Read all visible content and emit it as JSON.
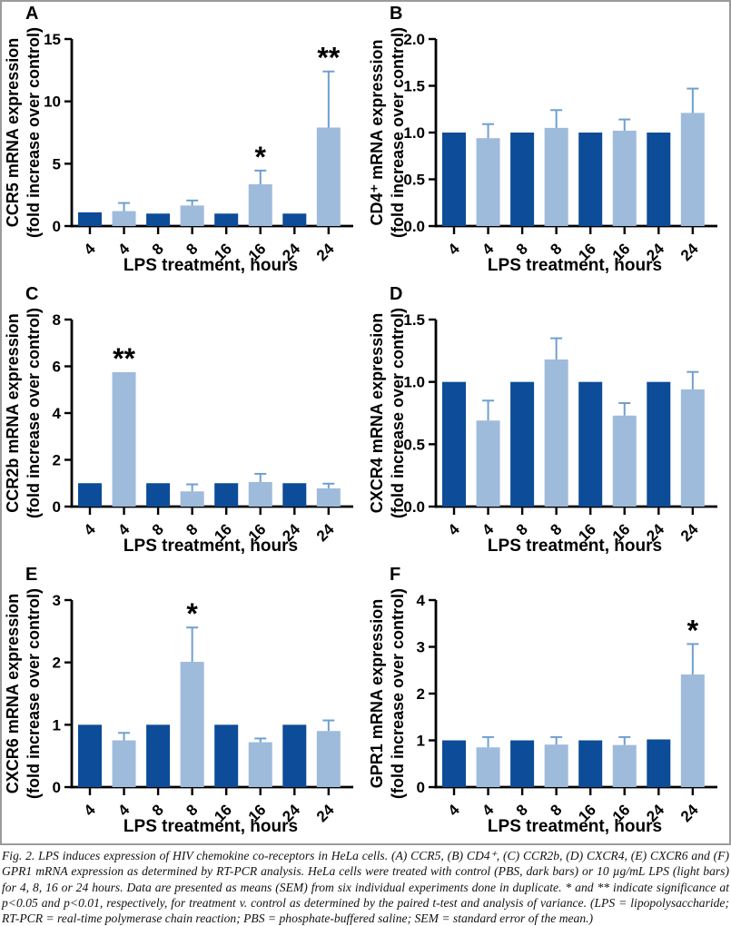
{
  "figure": {
    "caption": "Fig. 2. LPS induces expression of HIV chemokine co-receptors in HeLa cells. (A) CCR5, (B) CD4⁺, (C) CCR2b, (D) CXCR4, (E) CXCR6 and (F) GPR1 mRNA expression as determined by RT-PCR analysis. HeLa cells were treated with control (PBS, dark bars) or 10 µg/mL LPS (light bars) for 4, 8, 16 or 24 hours. Data are presented as means (SEM) from six individual experiments done in duplicate. * and ** indicate significance at p<0.05 and p<0.01, respectively, for treatment v. control as determined by the paired t-test and analysis of variance. (LPS = lipopolysaccharide; RT-PCR = real-time polymerase chain reaction; PBS = phosphate-buffered saline; SEM = standard error of the mean.)",
    "legend": {
      "dark_bars": "control (PBS)",
      "light_bars": "10 µg/mL LPS"
    }
  },
  "colors": {
    "bar_dark": "#0d4c98",
    "bar_light": "#9fbbdb",
    "error_bar": "#6f9fd0",
    "axis": "#000000",
    "text": "#000000",
    "frame_border": "#9b9b9b"
  },
  "chart_data": [
    {
      "panel": "A",
      "type": "bar",
      "ylabel_line1": "CCR5 mRNA expression",
      "ylabel_line2": "(fold increase over control)",
      "xlabel": "LPS treatment, hours",
      "categories": [
        "4",
        "4",
        "8",
        "8",
        "16",
        "16",
        "24",
        "24"
      ],
      "values": [
        1.1,
        1.2,
        1.0,
        1.65,
        1.0,
        3.35,
        1.0,
        7.9
      ],
      "errors": [
        0,
        0.65,
        0,
        0.4,
        0,
        1.1,
        0,
        4.5
      ],
      "significance": [
        "",
        "",
        "",
        "",
        "",
        "*",
        "",
        "**"
      ],
      "ylim": [
        0,
        15
      ],
      "yticks": [
        "0",
        "5",
        "10",
        "15"
      ]
    },
    {
      "panel": "B",
      "type": "bar",
      "ylabel_line1": "CD4⁺ mRNA expression",
      "ylabel_line2": "(fold increase over control)",
      "xlabel": "LPS treatment, hours",
      "categories": [
        "4",
        "4",
        "8",
        "8",
        "16",
        "16",
        "24",
        "24"
      ],
      "values": [
        1.0,
        0.94,
        1.0,
        1.05,
        1.0,
        1.02,
        1.0,
        1.21
      ],
      "errors": [
        0,
        0.15,
        0,
        0.19,
        0,
        0.12,
        0,
        0.26
      ],
      "significance": [
        "",
        "",
        "",
        "",
        "",
        "",
        "",
        ""
      ],
      "ylim": [
        0,
        2.0
      ],
      "yticks": [
        "0.0",
        "0.5",
        "1.0",
        "1.5",
        "2.0"
      ]
    },
    {
      "panel": "C",
      "type": "bar",
      "ylabel_line1": "CCR2b mRNA expression",
      "ylabel_line2": "(fold increase over control)",
      "xlabel": "LPS treatment, hours",
      "categories": [
        "4",
        "4",
        "8",
        "8",
        "16",
        "16",
        "24",
        "24"
      ],
      "values": [
        1.0,
        5.75,
        1.0,
        0.65,
        1.0,
        1.05,
        1.0,
        0.78
      ],
      "errors": [
        0,
        0,
        0,
        0.3,
        0,
        0.35,
        0,
        0.2
      ],
      "significance": [
        "",
        "**",
        "",
        "",
        "",
        "",
        "",
        ""
      ],
      "ylim": [
        0,
        8
      ],
      "yticks": [
        "0",
        "2",
        "4",
        "6",
        "8"
      ]
    },
    {
      "panel": "D",
      "type": "bar",
      "ylabel_line1": "CXCR4 mRNA expression",
      "ylabel_line2": "(fold increase over control)",
      "xlabel": "LPS treatment, hours",
      "categories": [
        "4",
        "4",
        "8",
        "8",
        "16",
        "16",
        "24",
        "24"
      ],
      "values": [
        1.0,
        0.69,
        1.0,
        1.18,
        1.0,
        0.73,
        1.0,
        0.94
      ],
      "errors": [
        0,
        0.16,
        0,
        0.17,
        0,
        0.1,
        0,
        0.14
      ],
      "significance": [
        "",
        "",
        "",
        "",
        "",
        "",
        "",
        ""
      ],
      "ylim": [
        0,
        1.5
      ],
      "yticks": [
        "0.0",
        "0.5",
        "1.0",
        "1.5"
      ]
    },
    {
      "panel": "E",
      "type": "bar",
      "ylabel_line1": "CXCR6 mRNA expression",
      "ylabel_line2": "(fold increase over control)",
      "xlabel": "LPS treatment, hours",
      "categories": [
        "4",
        "4",
        "8",
        "8",
        "16",
        "16",
        "24",
        "24"
      ],
      "values": [
        1.0,
        0.75,
        1.0,
        2.01,
        1.0,
        0.72,
        1.0,
        0.9
      ],
      "errors": [
        0,
        0.12,
        0,
        0.55,
        0,
        0.06,
        0,
        0.17
      ],
      "significance": [
        "",
        "",
        "",
        "*",
        "",
        "",
        "",
        ""
      ],
      "ylim": [
        0,
        3
      ],
      "yticks": [
        "0",
        "1",
        "2",
        "3"
      ]
    },
    {
      "panel": "F",
      "type": "bar",
      "ylabel_line1": "GPR1 mRNA expression",
      "ylabel_line2": "(fold increase over control)",
      "xlabel": "LPS treatment, hours",
      "categories": [
        "4",
        "4",
        "8",
        "8",
        "16",
        "16",
        "24",
        "24"
      ],
      "values": [
        1.0,
        0.85,
        1.0,
        0.91,
        1.0,
        0.9,
        1.02,
        2.41
      ],
      "errors": [
        0,
        0.22,
        0,
        0.16,
        0,
        0.17,
        0,
        0.65
      ],
      "significance": [
        "",
        "",
        "",
        "",
        "",
        "",
        "",
        "*"
      ],
      "ylim": [
        0,
        4
      ],
      "yticks": [
        "0",
        "1",
        "2",
        "3",
        "4"
      ]
    }
  ]
}
